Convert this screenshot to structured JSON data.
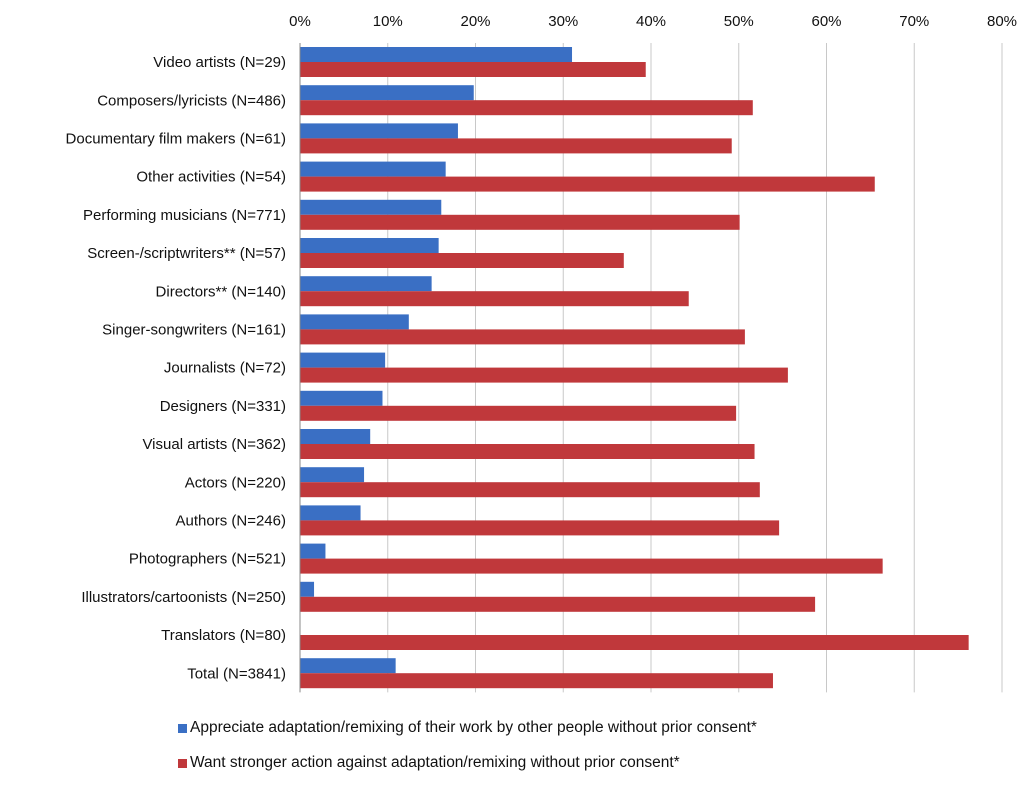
{
  "chart_data": {
    "type": "bar",
    "orientation": "horizontal",
    "categories": [
      "Video artists (N=29)",
      "Composers/lyricists (N=486)",
      "Documentary film makers (N=61)",
      "Other activities (N=54)",
      "Performing musicians (N=771)",
      "Screen-/scriptwriters** (N=57)",
      "Directors** (N=140)",
      "Singer-songwriters (N=161)",
      "Journalists (N=72)",
      "Designers (N=331)",
      "Visual artists (N=362)",
      "Actors (N=220)",
      "Authors (N=246)",
      "Photographers (N=521)",
      "Illustrators/cartoonists (N=250)",
      "Translators (N=80)",
      "Total (N=3841)"
    ],
    "series": [
      {
        "name": "Appreciate adaptation/remixing of their work by other people without prior consent*",
        "color": "#3a6fc4",
        "values": [
          31,
          19.8,
          18,
          16.6,
          16.1,
          15.8,
          15,
          12.4,
          9.7,
          9.4,
          8,
          7.3,
          6.9,
          2.9,
          1.6,
          0,
          10.9
        ]
      },
      {
        "name": "Want stronger action against adaptation/remixing without prior consent*",
        "color": "#c0383b",
        "values": [
          39.4,
          51.6,
          49.2,
          65.5,
          50.1,
          36.9,
          44.3,
          50.7,
          55.6,
          49.7,
          51.8,
          52.4,
          54.6,
          66.4,
          58.7,
          76.2,
          53.9
        ]
      }
    ],
    "xlim": [
      0,
      80
    ],
    "x_ticks": [
      "0%",
      "10%",
      "20%",
      "30%",
      "40%",
      "50%",
      "60%",
      "70%",
      "80%"
    ],
    "grid": true,
    "legend_position": "bottom",
    "title": "",
    "xlabel": "",
    "ylabel": ""
  },
  "legend": {
    "items": [
      {
        "label": "Appreciate adaptation/remixing of their work by other people without prior consent*",
        "color": "#3a6fc4"
      },
      {
        "label": "Want stronger action against adaptation/remixing without prior consent*",
        "color": "#c0383b"
      }
    ]
  }
}
